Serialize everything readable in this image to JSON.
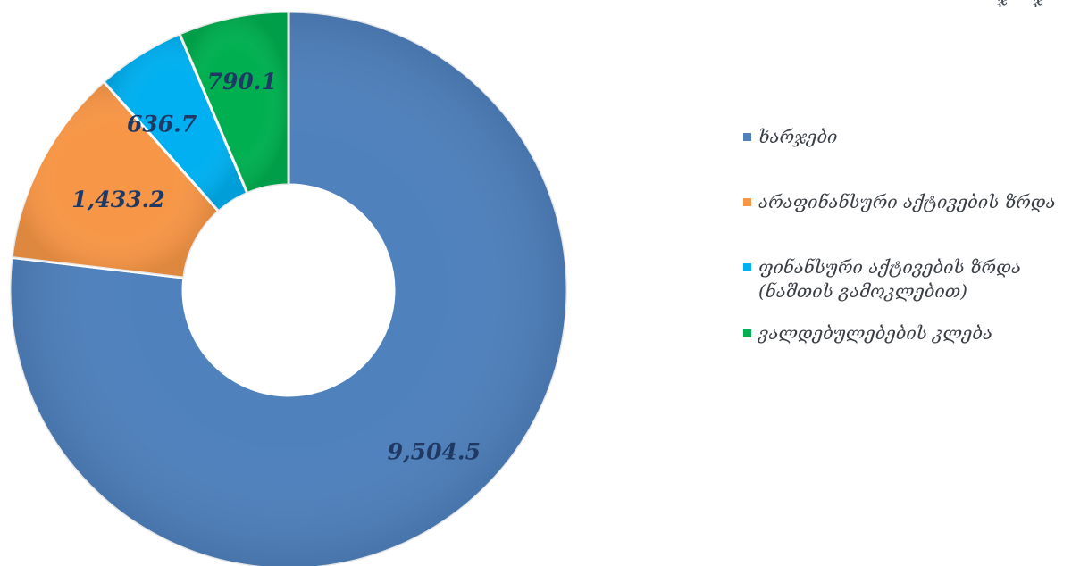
{
  "chart_data": {
    "type": "pie",
    "variant": "donut",
    "title": "",
    "slices": [
      {
        "label": "ხარჯები",
        "value": 9504.5,
        "value_label": "9,504.5",
        "color": "#4f81bd"
      },
      {
        "label": "არაფინანსური აქტივების ზრდა",
        "value": 1433.2,
        "value_label": "1,433.2",
        "color": "#f79646"
      },
      {
        "label": "ფინანსური აქტივების ზრდა (ნაშთის გამოკლებით)",
        "value": 636.7,
        "value_label": "636.7",
        "color": "#00b0f0"
      },
      {
        "label": "ვალდებულებების კლება",
        "value": 790.1,
        "value_label": "790.1",
        "color": "#00b050"
      }
    ],
    "legend_position": "right",
    "data_labels": true
  },
  "corner_text": "ჯ"
}
